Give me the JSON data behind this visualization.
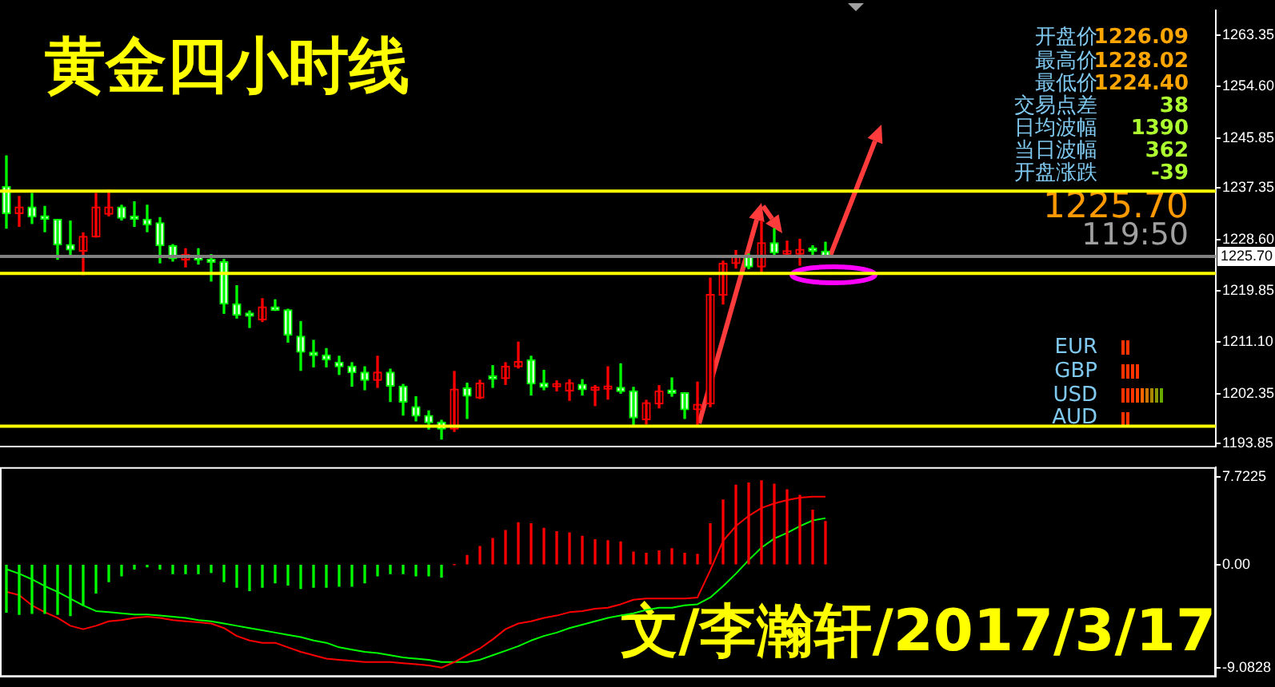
{
  "chart_data": [
    {
      "type": "candlestick",
      "title": "黄金四小时线",
      "categories": [
        null,
        null,
        null,
        null,
        null,
        null,
        null,
        null,
        null,
        null,
        null,
        null,
        null,
        null,
        null,
        null,
        null,
        null,
        null,
        null,
        null,
        null,
        null,
        null,
        null,
        null,
        null,
        null,
        null,
        null,
        null,
        null,
        null,
        null,
        null,
        null,
        null,
        null,
        null,
        null,
        null,
        null,
        null,
        null,
        null,
        null,
        null,
        null,
        null,
        null,
        null,
        null,
        null,
        null,
        null,
        null,
        null,
        null,
        null,
        null,
        null,
        null,
        null,
        null,
        null,
        null,
        null,
        null,
        null,
        null,
        null,
        null,
        null,
        null,
        null,
        null,
        null,
        null,
        null,
        null,
        null,
        null,
        null,
        null,
        null,
        null,
        null,
        null,
        null,
        null,
        null,
        null,
        null,
        null,
        null
      ],
      "ohlc": [
        [
          1237.6,
          1242.8,
          1230.5,
          1233.0
        ],
        [
          1233.0,
          1235.9,
          1230.8,
          1234.1
        ],
        [
          1234.1,
          1236.4,
          1231.3,
          1232.4
        ],
        [
          1232.6,
          1234.2,
          1229.9,
          1232.0
        ],
        [
          1232.0,
          1232.0,
          1225.2,
          1227.7
        ],
        [
          1227.7,
          1231.7,
          1226.0,
          1226.8
        ],
        [
          1226.6,
          1229.7,
          1222.6,
          1229.1
        ],
        [
          1229.0,
          1236.4,
          1229.0,
          1234.1
        ],
        [
          1232.9,
          1237.0,
          1232.6,
          1234.1
        ],
        [
          1234.1,
          1234.4,
          1231.9,
          1232.2
        ],
        [
          1232.2,
          1235.0,
          1230.8,
          1232.0
        ],
        [
          1232.0,
          1234.4,
          1229.9,
          1231.1
        ],
        [
          1231.4,
          1232.3,
          1224.6,
          1227.5
        ],
        [
          1227.5,
          1227.7,
          1224.9,
          1225.3
        ],
        [
          1225.1,
          1227.0,
          1223.9,
          1226.0
        ],
        [
          1225.6,
          1227.0,
          1224.4,
          1225.1
        ],
        [
          1225.2,
          1226.0,
          1221.5,
          1224.7
        ],
        [
          1224.8,
          1225.2,
          1216.0,
          1217.6
        ],
        [
          1217.6,
          1220.7,
          1215.2,
          1215.7
        ],
        [
          1215.9,
          1216.4,
          1213.6,
          1215.5
        ],
        [
          1214.9,
          1218.5,
          1214.6,
          1217.1
        ],
        [
          1217.1,
          1218.3,
          1216.5,
          1216.5
        ],
        [
          1216.6,
          1216.7,
          1211.1,
          1212.3
        ],
        [
          1212.1,
          1214.6,
          1206.3,
          1209.4
        ],
        [
          1209.4,
          1211.4,
          1206.9,
          1208.8
        ],
        [
          1208.9,
          1210.0,
          1206.9,
          1208.1
        ],
        [
          1207.7,
          1208.7,
          1205.6,
          1206.9
        ],
        [
          1207.0,
          1207.6,
          1203.6,
          1205.9
        ],
        [
          1206.0,
          1206.9,
          1203.0,
          1204.6
        ],
        [
          1204.6,
          1208.7,
          1203.4,
          1206.0
        ],
        [
          1206.0,
          1206.5,
          1201.0,
          1203.6
        ],
        [
          1203.6,
          1203.9,
          1198.7,
          1200.9
        ],
        [
          1200.1,
          1201.8,
          1197.7,
          1198.5
        ],
        [
          1198.6,
          1199.4,
          1196.3,
          1197.4
        ],
        [
          1197.5,
          1197.8,
          1194.6,
          1196.3
        ],
        [
          1196.3,
          1206.1,
          1195.9,
          1203.1
        ],
        [
          1203.3,
          1204.1,
          1198.1,
          1201.9
        ],
        [
          1201.6,
          1204.6,
          1201.5,
          1204.1
        ],
        [
          1205.2,
          1207.1,
          1203.4,
          1204.8
        ],
        [
          1204.9,
          1207.6,
          1203.9,
          1207.0
        ],
        [
          1206.9,
          1211.1,
          1206.7,
          1207.8
        ],
        [
          1208.1,
          1208.7,
          1202.1,
          1204.0
        ],
        [
          1204.1,
          1206.3,
          1203.0,
          1203.4
        ],
        [
          1203.5,
          1204.5,
          1202.8,
          1203.8
        ],
        [
          1202.8,
          1204.7,
          1201.2,
          1204.2
        ],
        [
          1203.9,
          1204.7,
          1202.1,
          1203.0
        ],
        [
          1202.9,
          1203.7,
          1200.3,
          1203.1
        ],
        [
          1203.1,
          1206.9,
          1201.4,
          1203.3
        ],
        [
          1203.4,
          1207.4,
          1202.4,
          1202.7
        ],
        [
          1202.8,
          1203.4,
          1196.8,
          1198.2
        ],
        [
          1197.9,
          1201.2,
          1197.2,
          1200.8
        ],
        [
          1200.6,
          1203.7,
          1199.9,
          1202.8
        ],
        [
          1202.9,
          1205.0,
          1201.9,
          1202.4
        ],
        [
          1202.5,
          1202.5,
          1198.1,
          1199.6
        ],
        [
          1199.6,
          1204.3,
          1196.8,
          1200.5
        ],
        [
          1200.6,
          1222.0,
          1200.1,
          1219.2
        ],
        [
          1219.1,
          1224.9,
          1217.6,
          1224.5
        ],
        [
          1224.5,
          1226.7,
          1223.7,
          1225.9
        ],
        [
          1225.9,
          1226.1,
          1223.6,
          1223.9
        ],
        [
          1223.9,
          1231.7,
          1223.1,
          1228.0
        ],
        [
          1228.0,
          1230.4,
          1225.7,
          1226.3
        ],
        [
          1226.1,
          1228.3,
          1225.5,
          1226.5
        ],
        [
          1226.1,
          1228.6,
          1224.2,
          1226.9
        ],
        [
          1226.9,
          1227.5,
          1225.5,
          1226.6
        ],
        [
          1226.6,
          1228.1,
          1225.5,
          1225.7
        ],
        null,
        null,
        null,
        null,
        null,
        null,
        null,
        null,
        null,
        null,
        null,
        null,
        null,
        null,
        null,
        null,
        null,
        null,
        null,
        null,
        null,
        null,
        null,
        null,
        null,
        null,
        null,
        null,
        null,
        null
      ],
      "colors": [
        "#00ff00",
        "#ff0000",
        "#00ff00",
        "#00ff00",
        "#00ff00",
        "#00ff00",
        "#ff0000",
        "#ff0000",
        "#ff0000",
        "#00ff00",
        "#00ff00",
        "#00ff00",
        "#00ff00",
        "#00ff00",
        "#ff0000",
        "#00ff00",
        "#00ff00",
        "#00ff00",
        "#00ff00",
        "#00ff00",
        "#ff0000",
        "#00ff00",
        "#00ff00",
        "#00ff00",
        "#00ff00",
        "#00ff00",
        "#00ff00",
        "#00ff00",
        "#00ff00",
        "#ff0000",
        "#00ff00",
        "#00ff00",
        "#00ff00",
        "#00ff00",
        "#00ff00",
        "#ff0000",
        "#00ff00",
        "#ff0000",
        "#00ff00",
        "#ff0000",
        "#ff0000",
        "#00ff00",
        "#00ff00",
        "#ff0000",
        "#ff0000",
        "#00ff00",
        "#ff0000",
        "#ff0000",
        "#00ff00",
        "#00ff00",
        "#ff0000",
        "#ff0000",
        "#00ff00",
        "#00ff00",
        "#ff0000",
        "#ff0000",
        "#ff0000",
        "#ff0000",
        "#00ff00",
        "#ff0000",
        "#00ff00",
        "#ff0000",
        "#ff0000",
        "#00ff00",
        "#00ff00",
        null,
        null,
        null,
        null,
        null,
        null,
        null,
        null,
        null,
        null,
        null,
        null,
        null,
        null,
        null,
        null,
        null,
        null,
        null,
        null,
        null,
        null,
        null,
        null,
        null,
        null,
        null,
        null,
        null,
        null
      ],
      "ylim": [
        1193.3,
        1267.6
      ],
      "yticks": [
        1193.85,
        1202.35,
        {
          "value": 1211.1,
          "label": "1211.10"
        },
        1219.85,
        {
          "value": 1228.6,
          "label": "1228.60"
        },
        1237.35,
        1245.85,
        {
          "value": 1254.6,
          "label": "1254.60"
        },
        1263.35
      ],
      "tick_labels": "y",
      "ref_lines": [
        {
          "axis": "y",
          "value": 1236.8,
          "color": "#ffff00"
        },
        {
          "axis": "y",
          "value": 1222.8,
          "color": "#ffff00"
        },
        {
          "axis": "y",
          "value": 1196.8,
          "color": "#ffff00"
        },
        {
          "axis": "y",
          "value": 1225.7,
          "label": "1225.70",
          "color": "#808080"
        }
      ],
      "annotations": [
        "开盘价",
        "1226.09",
        "最高价",
        "1228.02",
        "最低价",
        "1224.40",
        "交易点差",
        "38",
        "日均波幅",
        "1390",
        "当日波幅",
        "362",
        "开盘涨跌",
        "-39",
        "1225.70",
        "119:50",
        "EUR",
        "GBP",
        "USD",
        "AUD",
        "文/李瀚轩/2017/3/17"
      ]
    },
    {
      "type": "bar",
      "categories": [
        null,
        null,
        null,
        null,
        null,
        null,
        null,
        null,
        null,
        null,
        null,
        null,
        null,
        null,
        null,
        null,
        null,
        null,
        null,
        null,
        null,
        null,
        null,
        null,
        null,
        null,
        null,
        null,
        null,
        null,
        null,
        null,
        null,
        null,
        null,
        null,
        null,
        null,
        null,
        null,
        null,
        null,
        null,
        null,
        null,
        null,
        null,
        null,
        null,
        null,
        null,
        null,
        null,
        null,
        null,
        null,
        null,
        null,
        null,
        null,
        null,
        null,
        null,
        null,
        null,
        null,
        null,
        null,
        null,
        null,
        null,
        null,
        null,
        null,
        null,
        null,
        null,
        null,
        null,
        null,
        null,
        null,
        null,
        null,
        null,
        null,
        null,
        null,
        null,
        null,
        null,
        null,
        null,
        null,
        null
      ],
      "series": [
        {
          "type": "bar",
          "colors": [
            "#00ff00",
            "#00ff00",
            "#00ff00",
            "#00ff00",
            "#00ff00",
            "#00ff00",
            "#00ff00",
            "#00ff00",
            "#00ff00",
            "#00ff00",
            "#00ff00",
            "#00ff00",
            "#00ff00",
            "#00ff00",
            "#00ff00",
            "#00ff00",
            "#00ff00",
            "#00ff00",
            "#00ff00",
            "#00ff00",
            "#00ff00",
            "#00ff00",
            "#00ff00",
            "#00ff00",
            "#00ff00",
            "#00ff00",
            "#00ff00",
            "#00ff00",
            "#00ff00",
            "#00ff00",
            "#00ff00",
            "#00ff00",
            "#00ff00",
            "#00ff00",
            "#00ff00",
            "#ff0000",
            "#ff0000",
            "#ff0000",
            "#ff0000",
            "#ff0000",
            "#ff0000",
            "#ff0000",
            "#ff0000",
            "#ff0000",
            "#ff0000",
            "#ff0000",
            "#ff0000",
            "#ff0000",
            "#ff0000",
            "#ff0000",
            "#ff0000",
            "#ff0000",
            "#ff0000",
            "#ff0000",
            "#ff0000",
            "#ff0000",
            "#ff0000",
            "#ff0000",
            "#ff0000",
            "#ff0000",
            "#ff0000",
            "#ff0000",
            "#ff0000",
            "#ff0000",
            "#ff0000",
            null,
            null,
            null,
            null,
            null,
            null,
            null,
            null,
            null,
            null,
            null,
            null,
            null,
            null,
            null,
            null,
            null,
            null,
            null,
            null,
            null,
            null,
            null,
            null,
            null,
            null,
            null,
            null,
            null,
            null
          ],
          "values": [
            -4.2,
            -4.4,
            -4.3,
            -4.3,
            -4.4,
            -4.5,
            -3.6,
            -2.5,
            -1.5,
            -1.0,
            -0.4,
            -0.2,
            -0.4,
            -0.8,
            -0.8,
            -0.8,
            -0.7,
            -1.5,
            -2.0,
            -2.3,
            -2.0,
            -1.6,
            -1.8,
            -2.1,
            -2.0,
            -2.0,
            -1.9,
            -1.9,
            -1.6,
            -1.0,
            -0.8,
            -0.8,
            -1.0,
            -1.0,
            -1.1,
            0,
            0.8,
            1.6,
            2.3,
            3.0,
            3.7,
            3.6,
            3.2,
            2.9,
            2.8,
            2.5,
            2.2,
            2.1,
            2.0,
            1.1,
            1.0,
            1.2,
            1.4,
            1.0,
            0.9,
            3.6,
            5.7,
            7.0,
            7.2,
            7.4,
            7.1,
            6.6,
            6.1,
            4.8,
            3.8,
            null,
            null,
            null,
            null,
            null,
            null,
            null,
            null,
            null,
            null,
            null,
            null,
            null,
            null,
            null,
            null,
            null,
            null,
            null,
            null,
            null,
            null,
            null,
            null,
            null,
            null,
            null,
            null,
            null,
            null
          ]
        },
        {
          "type": "line",
          "color": "#ff0000",
          "values": [
            -2.4,
            -2.7,
            -3.6,
            -4.2,
            -4.7,
            -5.4,
            -5.7,
            -5.4,
            -5.0,
            -4.9,
            -4.7,
            -4.6,
            -4.7,
            -4.9,
            -5.0,
            -5.1,
            -5.2,
            -5.6,
            -6.3,
            -6.7,
            -6.9,
            -6.9,
            -7.3,
            -7.7,
            -8.0,
            -8.3,
            -8.4,
            -8.5,
            -8.6,
            -8.6,
            -8.6,
            -8.7,
            -8.8,
            -8.9,
            -9.1,
            -8.6,
            -8.0,
            -7.4,
            -6.6,
            -5.7,
            -5.2,
            -5.0,
            -4.7,
            -4.5,
            -4.2,
            -4.1,
            -3.9,
            -3.8,
            -3.5,
            -3.1,
            -3.0,
            -3.0,
            -3.0,
            -3.0,
            -2.9,
            -0.5,
            2.1,
            3.4,
            4.3,
            5.0,
            5.4,
            5.7,
            5.9,
            6.0,
            6.0,
            null,
            null,
            null,
            null,
            null,
            null,
            null,
            null,
            null,
            null,
            null,
            null,
            null,
            null,
            null,
            null,
            null,
            null,
            null,
            null,
            null,
            null,
            null,
            null,
            null,
            null,
            null,
            null,
            null,
            null
          ]
        },
        {
          "type": "line",
          "color": "#00ff00",
          "values": [
            -0.4,
            -0.8,
            -1.3,
            -1.9,
            -2.4,
            -3.0,
            -3.6,
            -4.1,
            -4.2,
            -4.3,
            -4.4,
            -4.4,
            -4.5,
            -4.6,
            -4.7,
            -4.9,
            -5.0,
            -5.2,
            -5.4,
            -5.6,
            -5.8,
            -6.0,
            -6.2,
            -6.4,
            -6.7,
            -6.9,
            -7.3,
            -7.5,
            -7.7,
            -7.8,
            -8.0,
            -8.2,
            -8.3,
            -8.4,
            -8.6,
            -8.6,
            -8.6,
            -8.4,
            -8.0,
            -7.6,
            -7.2,
            -6.7,
            -6.3,
            -6.0,
            -5.6,
            -5.3,
            -5.0,
            -4.7,
            -4.5,
            -4.3,
            -4.0,
            -3.8,
            -3.8,
            -3.6,
            -3.5,
            -2.9,
            -1.9,
            -0.8,
            0.4,
            1.5,
            2.3,
            2.8,
            3.4,
            3.9,
            4.1,
            null,
            null,
            null,
            null,
            null,
            null,
            null,
            null,
            null,
            null,
            null,
            null,
            null,
            null,
            null,
            null,
            null,
            null,
            null,
            null,
            null,
            null,
            null,
            null,
            null,
            null,
            null,
            null,
            null,
            null
          ]
        }
      ],
      "ylim": [
        -9.9,
        8.6
      ],
      "yticks": [
        -9.0828,
        {
          "value": 0,
          "label": "0.00"
        },
        7.7225
      ],
      "tick_labels": "y",
      "marker": "none"
    }
  ]
}
